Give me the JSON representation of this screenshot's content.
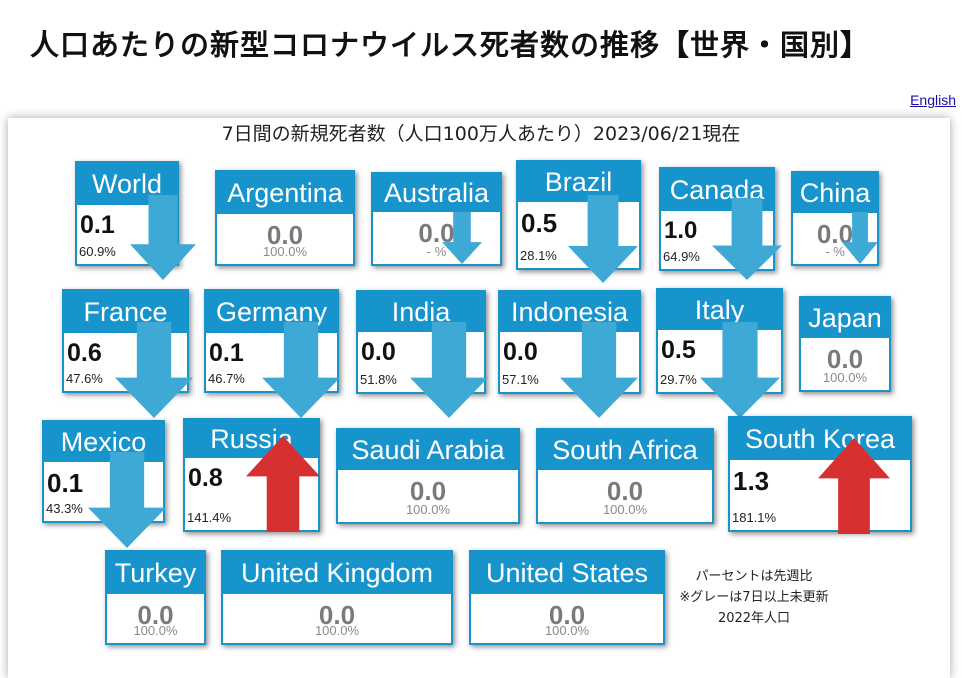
{
  "header": {
    "title": "人口あたりの新型コロナウイルス死者数の推移【世界・国別】",
    "english_link": "English"
  },
  "panel": {
    "subtitle": "7日間の新規死者数（人口100万人あたり）2023/06/21現在"
  },
  "colors": {
    "header_blue": "#1894cd",
    "down_arrow": "#3fa9d6",
    "up_arrow": "#d63030",
    "stale_value": "#7a7a7a"
  },
  "countries": [
    {
      "name": "World",
      "value": "0.1",
      "change": "60.9%",
      "trend": "down",
      "stale": false
    },
    {
      "name": "Argentina",
      "value": "0.0",
      "change": "100.0%",
      "trend": "none",
      "stale": true
    },
    {
      "name": "Australia",
      "value": "0.0",
      "change": "- %",
      "trend": "down-small",
      "stale": true
    },
    {
      "name": "Brazil",
      "value": "0.5",
      "change": "28.1%",
      "trend": "down",
      "stale": false
    },
    {
      "name": "Canada",
      "value": "1.0",
      "change": "64.9%",
      "trend": "down",
      "stale": false
    },
    {
      "name": "China",
      "value": "0.0",
      "change": "- %",
      "trend": "down-small",
      "stale": true
    },
    {
      "name": "France",
      "value": "0.6",
      "change": "47.6%",
      "trend": "down",
      "stale": false
    },
    {
      "name": "Germany",
      "value": "0.1",
      "change": "46.7%",
      "trend": "down",
      "stale": false
    },
    {
      "name": "India",
      "value": "0.0",
      "change": "51.8%",
      "trend": "down",
      "stale": false
    },
    {
      "name": "Indonesia",
      "value": "0.0",
      "change": "57.1%",
      "trend": "down",
      "stale": false
    },
    {
      "name": "Italy",
      "value": "0.5",
      "change": "29.7%",
      "trend": "down",
      "stale": false
    },
    {
      "name": "Japan",
      "value": "0.0",
      "change": "100.0%",
      "trend": "none",
      "stale": true
    },
    {
      "name": "Mexico",
      "value": "0.1",
      "change": "43.3%",
      "trend": "down",
      "stale": false
    },
    {
      "name": "Russia",
      "value": "0.8",
      "change": "141.4%",
      "trend": "up",
      "stale": false
    },
    {
      "name": "Saudi Arabia",
      "value": "0.0",
      "change": "100.0%",
      "trend": "none",
      "stale": true
    },
    {
      "name": "South Africa",
      "value": "0.0",
      "change": "100.0%",
      "trend": "none",
      "stale": true
    },
    {
      "name": "South Korea",
      "value": "1.3",
      "change": "181.1%",
      "trend": "up",
      "stale": false
    },
    {
      "name": "Turkey",
      "value": "0.0",
      "change": "100.0%",
      "trend": "none",
      "stale": true
    },
    {
      "name": "United Kingdom",
      "value": "0.0",
      "change": "100.0%",
      "trend": "none",
      "stale": true
    },
    {
      "name": "United States",
      "value": "0.0",
      "change": "100.0%",
      "trend": "none",
      "stale": true
    }
  ],
  "notes": [
    "パーセントは先週比",
    "※グレーは7日以上未更新",
    "2022年人口"
  ]
}
